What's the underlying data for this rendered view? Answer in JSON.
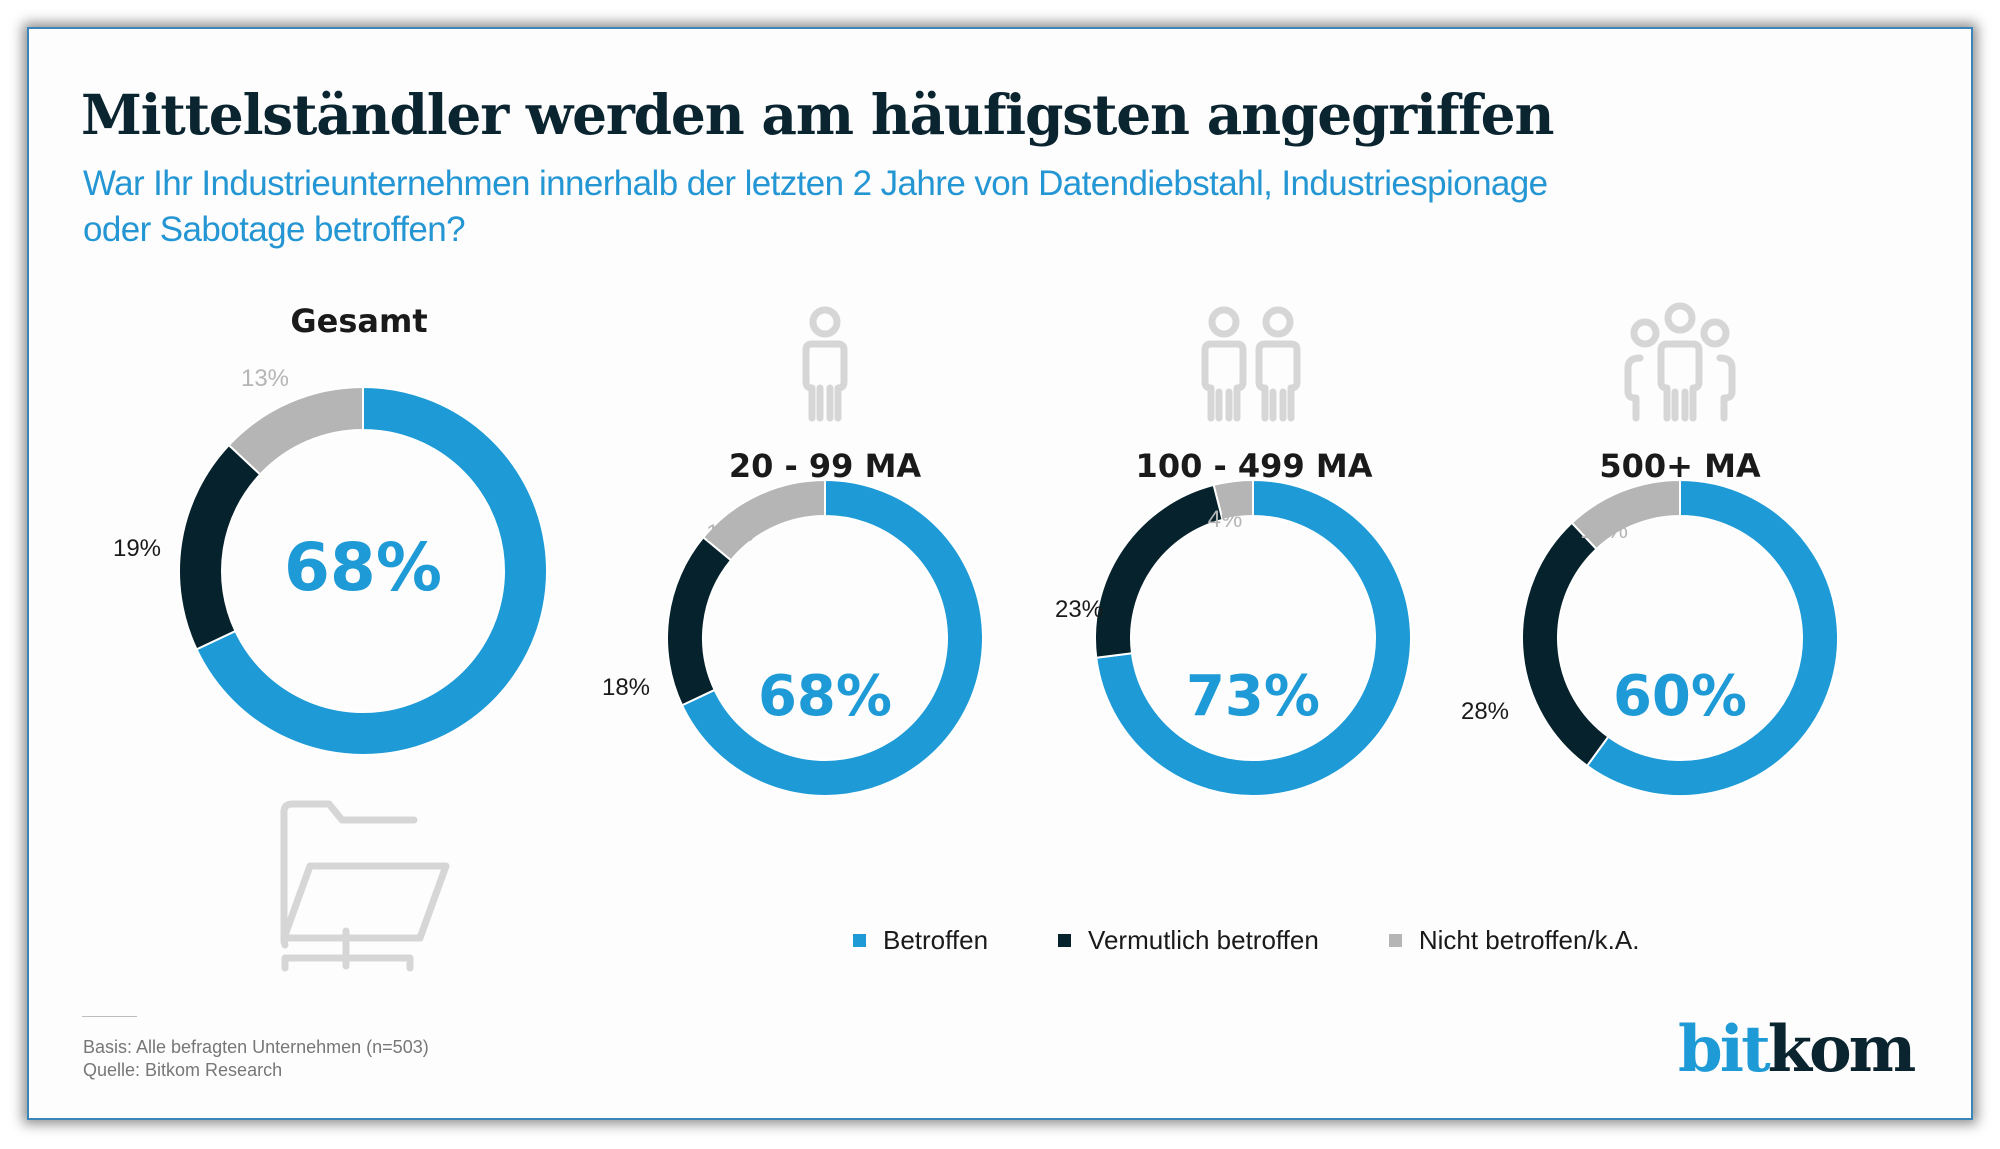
{
  "title": "Mittelständler werden am häufigsten angegriffen",
  "subtitle_lines": [
    "War Ihr Industrieunternehmen innerhalb der letzten 2 Jahre von Datendiebstahl, Industriespionage",
    "oder Sabotage betroffen?"
  ],
  "colors": {
    "betroffen": "#1e9ad6",
    "vermutlich": "#06222c",
    "nicht": "#b5b5b5",
    "title": "#0a2430",
    "subtitle": "#2496d3"
  },
  "chart_data": {
    "type": "pie",
    "variant": "donut",
    "title": "Mittelständler werden am häufigsten angegriffen",
    "subtitle": "War Ihr Industrieunternehmen innerhalb der letzten 2 Jahre von Datendiebstahl, Industriespionage oder Sabotage betroffen?",
    "legend": [
      "Betroffen",
      "Vermutlich betroffen",
      "Nicht betroffen/k.A."
    ],
    "legend_position": "bottom",
    "unit": "%",
    "charts": [
      {
        "category": "Gesamt",
        "icon": "folder-network-icon",
        "values": [
          68,
          19,
          13
        ],
        "center_label": "68%",
        "labels": [
          "68%",
          "19%",
          "13%"
        ]
      },
      {
        "category": "20 - 99 MA",
        "icon": "person-icon",
        "values": [
          68,
          18,
          14
        ],
        "center_label": "68%",
        "labels": [
          "68%",
          "18%",
          "14%"
        ]
      },
      {
        "category": "100 - 499 MA",
        "icon": "two-persons-icon",
        "values": [
          73,
          23,
          4
        ],
        "center_label": "73%",
        "labels": [
          "73%",
          "23%",
          "4%"
        ]
      },
      {
        "category": "500+ MA",
        "icon": "group-icon",
        "values": [
          60,
          28,
          12
        ],
        "center_label": "60%",
        "labels": [
          "60%",
          "28%",
          "12%"
        ]
      }
    ]
  },
  "legend": [
    {
      "label": "Betroffen",
      "color": "#1e9ad6"
    },
    {
      "label": "Vermutlich betroffen",
      "color": "#06222c"
    },
    {
      "label": "Nicht betroffen/k.A.",
      "color": "#b5b5b5"
    }
  ],
  "footnote": {
    "basis": "Basis: Alle befragten Unternehmen (n=503)",
    "source": "Quelle: Bitkom Research"
  },
  "logo": {
    "part1": "bit",
    "part2": "kom"
  }
}
